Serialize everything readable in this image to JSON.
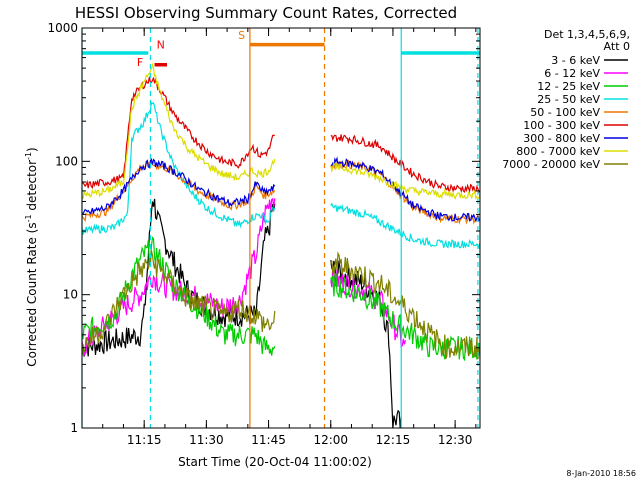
{
  "chart_data": {
    "type": "line",
    "title": "HESSI Observing Summary Count Rates, Corrected",
    "xlabel": "Start Time (20-Oct-04 11:00:02)",
    "ylabel": "Corrected Count Rate (s⁻¹ detector⁻¹)",
    "ylabel_parts": {
      "main": "Corrected Count Rate (s",
      "sup1": "-1",
      "mid": " detector",
      "sup2": "-1",
      "end": ")"
    },
    "yscale": "log",
    "ylim": [
      1,
      1000
    ],
    "xlim_minutes": [
      0,
      96
    ],
    "x_unit": "minutes after 11:00:02",
    "x_ticks": [
      {
        "minute": 15,
        "label": "11:15"
      },
      {
        "minute": 30,
        "label": "11:30"
      },
      {
        "minute": 45,
        "label": "11:45"
      },
      {
        "minute": 60,
        "label": "12:00"
      },
      {
        "minute": 75,
        "label": "12:15"
      },
      {
        "minute": 90,
        "label": "12:30"
      }
    ],
    "y_ticks": [
      {
        "value": 1,
        "label": "1"
      },
      {
        "value": 10,
        "label": "10"
      },
      {
        "value": 100,
        "label": "100"
      },
      {
        "value": 1000,
        "label": "1000"
      }
    ],
    "legend_title": [
      "Det 1,3,4,5,6,9,",
      "Att 0"
    ],
    "legend_position": "right",
    "timestamp": "8-Jan-2010 18:56",
    "annotations": [
      {
        "label": "F",
        "color": "#ff0000"
      },
      {
        "label": "N",
        "color": "#ff0000"
      },
      {
        "label": "S",
        "color": "#ee7700"
      }
    ],
    "data_gaps_minutes": [
      [
        46.5,
        60
      ],
      [
        96,
        96
      ]
    ],
    "series": [
      {
        "name": "3 - 6 keV",
        "color": "#000000",
        "points": [
          [
            0,
            4
          ],
          [
            14,
            5
          ],
          [
            15,
            7
          ],
          [
            17,
            55
          ],
          [
            19,
            30
          ],
          [
            22,
            18
          ],
          [
            26,
            10
          ],
          [
            30,
            8
          ],
          [
            34,
            7
          ],
          [
            38,
            7
          ],
          [
            42,
            7
          ],
          [
            44,
            25
          ],
          [
            45,
            30
          ],
          [
            46,
            45
          ],
          [
            61,
            15
          ],
          [
            64,
            14
          ],
          [
            68,
            12
          ],
          [
            72,
            9
          ],
          [
            74,
            5
          ],
          [
            75,
            1.1
          ],
          [
            76,
            1.2
          ],
          [
            77,
            1
          ]
        ]
      },
      {
        "name": "6 - 12 keV",
        "color": "#ff00ff",
        "points": [
          [
            0,
            4
          ],
          [
            10,
            8
          ],
          [
            14,
            10
          ],
          [
            17,
            14
          ],
          [
            19,
            12
          ],
          [
            22,
            11
          ],
          [
            26,
            10
          ],
          [
            30,
            9
          ],
          [
            34,
            8
          ],
          [
            38,
            9
          ],
          [
            42,
            20
          ],
          [
            44,
            40
          ],
          [
            46,
            55
          ],
          [
            61,
            13
          ],
          [
            64,
            12
          ],
          [
            68,
            11
          ],
          [
            72,
            9
          ],
          [
            75,
            6
          ],
          [
            78,
            4
          ]
        ]
      },
      {
        "name": "12 - 25 keV",
        "color": "#00cc00",
        "points": [
          [
            0,
            5
          ],
          [
            8,
            7
          ],
          [
            12,
            14
          ],
          [
            15,
            20
          ],
          [
            17,
            22
          ],
          [
            19,
            18
          ],
          [
            22,
            12
          ],
          [
            26,
            9
          ],
          [
            30,
            7
          ],
          [
            34,
            5
          ],
          [
            38,
            5
          ],
          [
            42,
            5
          ],
          [
            44,
            4
          ],
          [
            46,
            4
          ],
          [
            61,
            12
          ],
          [
            64,
            11
          ],
          [
            68,
            10
          ],
          [
            72,
            8
          ],
          [
            76,
            6
          ],
          [
            80,
            5
          ],
          [
            84,
            4
          ],
          [
            90,
            4
          ],
          [
            96,
            4
          ]
        ]
      },
      {
        "name": "25 - 50 keV",
        "color": "#00e0e0",
        "points": [
          [
            0,
            30
          ],
          [
            8,
            32
          ],
          [
            11,
            40
          ],
          [
            12,
            150
          ],
          [
            15,
            200
          ],
          [
            17,
            280
          ],
          [
            19,
            170
          ],
          [
            22,
            95
          ],
          [
            26,
            60
          ],
          [
            30,
            45
          ],
          [
            34,
            38
          ],
          [
            38,
            33
          ],
          [
            41,
            38
          ],
          [
            43,
            40
          ],
          [
            45,
            35
          ],
          [
            46,
            45
          ],
          [
            61,
            45
          ],
          [
            64,
            43
          ],
          [
            68,
            40
          ],
          [
            72,
            35
          ],
          [
            76,
            30
          ],
          [
            80,
            26
          ],
          [
            86,
            24
          ],
          [
            90,
            24
          ],
          [
            96,
            24
          ]
        ]
      },
      {
        "name": "50 - 100 keV",
        "color": "#ee7700",
        "points": [
          [
            0,
            38
          ],
          [
            6,
            42
          ],
          [
            10,
            60
          ],
          [
            14,
            90
          ],
          [
            17,
            95
          ],
          [
            20,
            90
          ],
          [
            24,
            75
          ],
          [
            28,
            60
          ],
          [
            32,
            52
          ],
          [
            36,
            46
          ],
          [
            40,
            50
          ],
          [
            42,
            65
          ],
          [
            44,
            55
          ],
          [
            46,
            60
          ],
          [
            61,
            95
          ],
          [
            64,
            95
          ],
          [
            68,
            90
          ],
          [
            72,
            80
          ],
          [
            76,
            60
          ],
          [
            80,
            45
          ],
          [
            86,
            38
          ],
          [
            90,
            37
          ],
          [
            96,
            37
          ]
        ]
      },
      {
        "name": "100 - 300 keV",
        "color": "#dd0000",
        "points": [
          [
            0,
            65
          ],
          [
            6,
            70
          ],
          [
            10,
            75
          ],
          [
            12,
            300
          ],
          [
            15,
            380
          ],
          [
            17,
            420
          ],
          [
            19,
            340
          ],
          [
            22,
            230
          ],
          [
            26,
            160
          ],
          [
            30,
            120
          ],
          [
            34,
            100
          ],
          [
            38,
            95
          ],
          [
            41,
            130
          ],
          [
            43,
            110
          ],
          [
            45,
            120
          ],
          [
            46,
            150
          ],
          [
            61,
            150
          ],
          [
            64,
            150
          ],
          [
            68,
            140
          ],
          [
            72,
            130
          ],
          [
            76,
            100
          ],
          [
            80,
            80
          ],
          [
            86,
            65
          ],
          [
            90,
            63
          ],
          [
            96,
            62
          ]
        ]
      },
      {
        "name": "300 - 800 keV",
        "color": "#0000dd",
        "points": [
          [
            0,
            40
          ],
          [
            6,
            45
          ],
          [
            10,
            60
          ],
          [
            14,
            90
          ],
          [
            17,
            98
          ],
          [
            20,
            92
          ],
          [
            24,
            78
          ],
          [
            28,
            62
          ],
          [
            32,
            54
          ],
          [
            36,
            48
          ],
          [
            40,
            52
          ],
          [
            42,
            68
          ],
          [
            44,
            58
          ],
          [
            46,
            62
          ],
          [
            61,
            98
          ],
          [
            64,
            97
          ],
          [
            68,
            92
          ],
          [
            72,
            82
          ],
          [
            76,
            62
          ],
          [
            80,
            46
          ],
          [
            86,
            39
          ],
          [
            90,
            38
          ],
          [
            96,
            38
          ]
        ]
      },
      {
        "name": "800 - 7000 keV",
        "color": "#dddd00",
        "points": [
          [
            0,
            55
          ],
          [
            6,
            60
          ],
          [
            10,
            70
          ],
          [
            12,
            250
          ],
          [
            15,
            400
          ],
          [
            17,
            500
          ],
          [
            19,
            320
          ],
          [
            22,
            180
          ],
          [
            26,
            120
          ],
          [
            30,
            95
          ],
          [
            34,
            80
          ],
          [
            38,
            75
          ],
          [
            41,
            85
          ],
          [
            43,
            80
          ],
          [
            45,
            85
          ],
          [
            46,
            100
          ],
          [
            61,
            90
          ],
          [
            64,
            88
          ],
          [
            68,
            82
          ],
          [
            72,
            75
          ],
          [
            76,
            65
          ],
          [
            80,
            60
          ],
          [
            86,
            57
          ],
          [
            90,
            56
          ],
          [
            96,
            56
          ]
        ]
      },
      {
        "name": "7000 - 20000 keV",
        "color": "#808000",
        "points": [
          [
            0,
            4
          ],
          [
            6,
            6
          ],
          [
            10,
            10
          ],
          [
            14,
            15
          ],
          [
            17,
            18
          ],
          [
            19,
            15
          ],
          [
            22,
            12
          ],
          [
            26,
            9
          ],
          [
            30,
            8
          ],
          [
            34,
            7
          ],
          [
            38,
            8
          ],
          [
            42,
            7
          ],
          [
            44,
            6
          ],
          [
            46,
            6
          ],
          [
            61,
            17
          ],
          [
            64,
            16
          ],
          [
            68,
            14
          ],
          [
            72,
            12
          ],
          [
            76,
            9
          ],
          [
            80,
            7
          ],
          [
            84,
            5
          ],
          [
            88,
            4
          ],
          [
            92,
            4
          ],
          [
            96,
            4
          ]
        ]
      }
    ]
  },
  "overlays": {
    "att_state_bars": [
      {
        "color": "#00e0e0",
        "start_min": 0,
        "end_min": 16,
        "level": 650
      },
      {
        "color": "#ee7700",
        "start_min": 40.5,
        "end_min": 58.5,
        "level": 750
      },
      {
        "color": "#00e0e0",
        "start_min": 77,
        "end_min": 96,
        "level": 650
      },
      {
        "color": "#dd0000",
        "start_min": 17.5,
        "end_min": 20.5,
        "level": 530
      }
    ],
    "vertical_lines": [
      {
        "color": "#00e0e0",
        "minute": 16.5,
        "style": "dashed"
      },
      {
        "color": "#ee7700",
        "minute": 40.5,
        "style": "solid"
      },
      {
        "color": "#ee7700",
        "minute": 58.5,
        "style": "dashed"
      },
      {
        "color": "#00e0e0",
        "minute": 77,
        "style": "solid"
      },
      {
        "color": "#00e0e0",
        "minute": 95.5,
        "style": "dashed"
      },
      {
        "color": "#00e0e0",
        "minute": 0,
        "style": "solid"
      }
    ]
  }
}
